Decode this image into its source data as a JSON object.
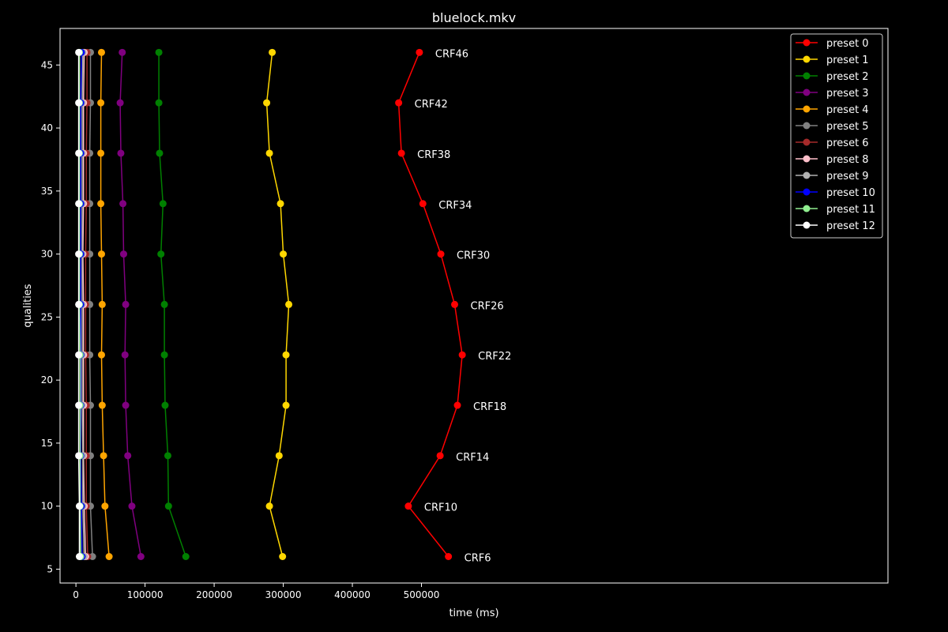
{
  "chart_data": {
    "type": "line",
    "title": "bluelock.mkv",
    "xlabel": "time (ms)",
    "ylabel": "qualities",
    "xlim": [
      -23000,
      1175000
    ],
    "ylim": [
      3.9,
      47.9
    ],
    "xticks": [
      0,
      100000,
      200000,
      300000,
      400000,
      500000
    ],
    "xtick_labels": [
      "0",
      "100000",
      "200000",
      "300000",
      "400000",
      "500000"
    ],
    "yticks": [
      5,
      10,
      15,
      20,
      25,
      30,
      35,
      40,
      45
    ],
    "ytick_labels": [
      "5",
      "10",
      "15",
      "20",
      "25",
      "30",
      "35",
      "40",
      "45"
    ],
    "grid": false,
    "legend_position": "top-right",
    "y": [
      6,
      10,
      14,
      18,
      22,
      26,
      30,
      34,
      38,
      42,
      46
    ],
    "point_labels": [
      "CRF6",
      "CRF10",
      "CRF14",
      "CRF18",
      "CRF22",
      "CRF26",
      "CRF30",
      "CRF34",
      "CRF38",
      "CRF42",
      "CRF46"
    ],
    "series": [
      {
        "name": "preset 0",
        "color": "#ff0000",
        "x": [
          539000,
          481000,
          527000,
          552000,
          559000,
          548000,
          528000,
          502000,
          471000,
          467000,
          497000
        ]
      },
      {
        "name": "preset 1",
        "color": "#ffd700",
        "x": [
          299000,
          280000,
          294000,
          304000,
          304000,
          308000,
          300000,
          296000,
          280000,
          276000,
          284000
        ]
      },
      {
        "name": "preset 2",
        "color": "#008000",
        "x": [
          159000,
          134000,
          133000,
          129000,
          128000,
          128000,
          123000,
          126000,
          121000,
          120000,
          120000
        ]
      },
      {
        "name": "preset 3",
        "color": "#800080",
        "x": [
          94000,
          81000,
          75000,
          72000,
          71000,
          72000,
          69000,
          68000,
          65000,
          64000,
          67000
        ]
      },
      {
        "name": "preset 4",
        "color": "#ffa500",
        "x": [
          48000,
          42000,
          40000,
          38000,
          37000,
          38000,
          37000,
          36000,
          36000,
          36000,
          37000
        ]
      },
      {
        "name": "preset 5",
        "color": "#808080",
        "x": [
          24000,
          21000,
          21000,
          21000,
          20000,
          20000,
          20000,
          20000,
          20000,
          21000,
          21000
        ]
      },
      {
        "name": "preset 6",
        "color": "#a52a2a",
        "x": [
          17000,
          15000,
          15000,
          15000,
          14000,
          14000,
          14000,
          15000,
          15000,
          16000,
          16000
        ]
      },
      {
        "name": "preset 8",
        "color": "#ffc0cb",
        "x": [
          14000,
          12000,
          11000,
          11000,
          11000,
          11000,
          10000,
          11000,
          11000,
          11000,
          12000
        ]
      },
      {
        "name": "preset 9",
        "color": "#b0b0b0",
        "x": [
          12000,
          10000,
          10000,
          9000,
          9000,
          9000,
          9000,
          9000,
          9000,
          9000,
          10000
        ]
      },
      {
        "name": "preset 10",
        "color": "#0000ff",
        "x": [
          9000,
          8000,
          7000,
          7000,
          7000,
          7000,
          7000,
          7000,
          7000,
          7000,
          8000
        ]
      },
      {
        "name": "preset 11",
        "color": "#90ee90",
        "x": [
          7000,
          6000,
          6000,
          6000,
          6000,
          5000,
          5000,
          5000,
          5000,
          5000,
          5000
        ]
      },
      {
        "name": "preset 12",
        "color": "#ffffff",
        "x": [
          5000,
          5000,
          4000,
          4000,
          4000,
          4000,
          4000,
          4000,
          4000,
          4000,
          4000
        ]
      }
    ]
  }
}
